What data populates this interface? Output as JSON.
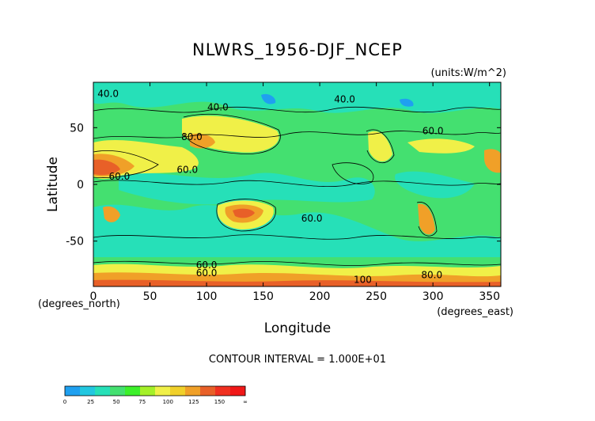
{
  "chart_data": {
    "type": "heatmap",
    "title": "NLWRS_1956-DJF_NCEP",
    "units_label": "(units:W/m^2)",
    "xlabel": "Longitude",
    "ylabel": "Latitude",
    "x_unit_label": "(degrees_east)",
    "y_unit_label": "(degrees_north)",
    "xlim": [
      0,
      360
    ],
    "ylim": [
      -90,
      90
    ],
    "x_ticks": [
      0,
      50,
      100,
      150,
      200,
      250,
      300,
      350
    ],
    "y_ticks": [
      50,
      0,
      -50
    ],
    "footer": "CONTOUR INTERVAL = 1.000E+01",
    "contour_labels": [
      {
        "text": "40.0",
        "lon": 13,
        "lat": 80
      },
      {
        "text": "40.0",
        "lon": 110,
        "lat": 68
      },
      {
        "text": "40.0",
        "lon": 222,
        "lat": 75
      },
      {
        "text": "60.0",
        "lon": 300,
        "lat": 47
      },
      {
        "text": "80.0",
        "lon": 87,
        "lat": 42
      },
      {
        "text": "60.0",
        "lon": 83,
        "lat": 13
      },
      {
        "text": "60.0",
        "lon": 23,
        "lat": 7
      },
      {
        "text": "60.0",
        "lon": 193,
        "lat": -30
      },
      {
        "text": "60.0",
        "lon": 100,
        "lat": -71
      },
      {
        "text": "60.0",
        "lon": 100,
        "lat": -78
      },
      {
        "text": "100",
        "lon": 238,
        "lat": -84
      },
      {
        "text": "80.0",
        "lon": 299,
        "lat": -80
      }
    ],
    "colorbar": {
      "ticks": [
        "0",
        "25",
        "50",
        "75",
        "100",
        "125",
        "150",
        "∞"
      ],
      "colors": [
        "#1fa0f0",
        "#22c7e0",
        "#26e0b8",
        "#44e070",
        "#3cf02a",
        "#a4f028",
        "#f0f048",
        "#f0d02a",
        "#f0a028",
        "#e86028",
        "#f03020",
        "#f01818"
      ]
    },
    "grid": false
  }
}
